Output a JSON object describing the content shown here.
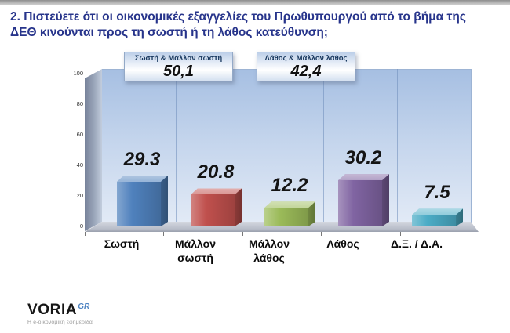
{
  "title": "2. Πιστεύετε ότι οι οικονομικές εξαγγελίες του Πρωθυπουργού από το βήμα της ΔΕΘ κινούνται προς τη σωστή ή τη λάθος κατεύθυνση;",
  "summary_boxes": [
    {
      "label": "Σωστή & Μάλλον σωστή",
      "value": "50,1"
    },
    {
      "label": "Λάθος & Μάλλον λάθος",
      "value": "42,4"
    }
  ],
  "chart_data": {
    "type": "bar",
    "style": "3d-column",
    "categories": [
      "Σωστή",
      "Μάλλον σωστή",
      "Μάλλον λάθος",
      "Λάθος",
      "Δ.Ξ. / Δ.Α."
    ],
    "values": [
      29.3,
      20.8,
      12.2,
      30.2,
      7.5
    ],
    "value_labels": [
      "29.3",
      "20.8",
      "12.2",
      "30.2",
      "7.5"
    ],
    "bar_colors": [
      "#4f81bd",
      "#c0504d",
      "#9bbb59",
      "#8064a2",
      "#4bacc6"
    ],
    "title": "",
    "xlabel": "",
    "ylabel": "",
    "ylim": [
      0,
      100
    ],
    "y_ticks": [
      0,
      20,
      40,
      60,
      80,
      100
    ],
    "grid": "vertical-category-separators",
    "legend": "none",
    "plot_bg": "#c3d4ec",
    "wall_color": "#9aa6ba",
    "floor_color": "#b8bdc9"
  },
  "footer": {
    "logo_text": "VORIA",
    "logo_suffix": "GR",
    "tagline": "Η e-οικονομική εφημερίδα"
  },
  "colors": {
    "title_text": "#27348b",
    "box_header_text": "#17375e",
    "value_label_text": "#141414"
  }
}
